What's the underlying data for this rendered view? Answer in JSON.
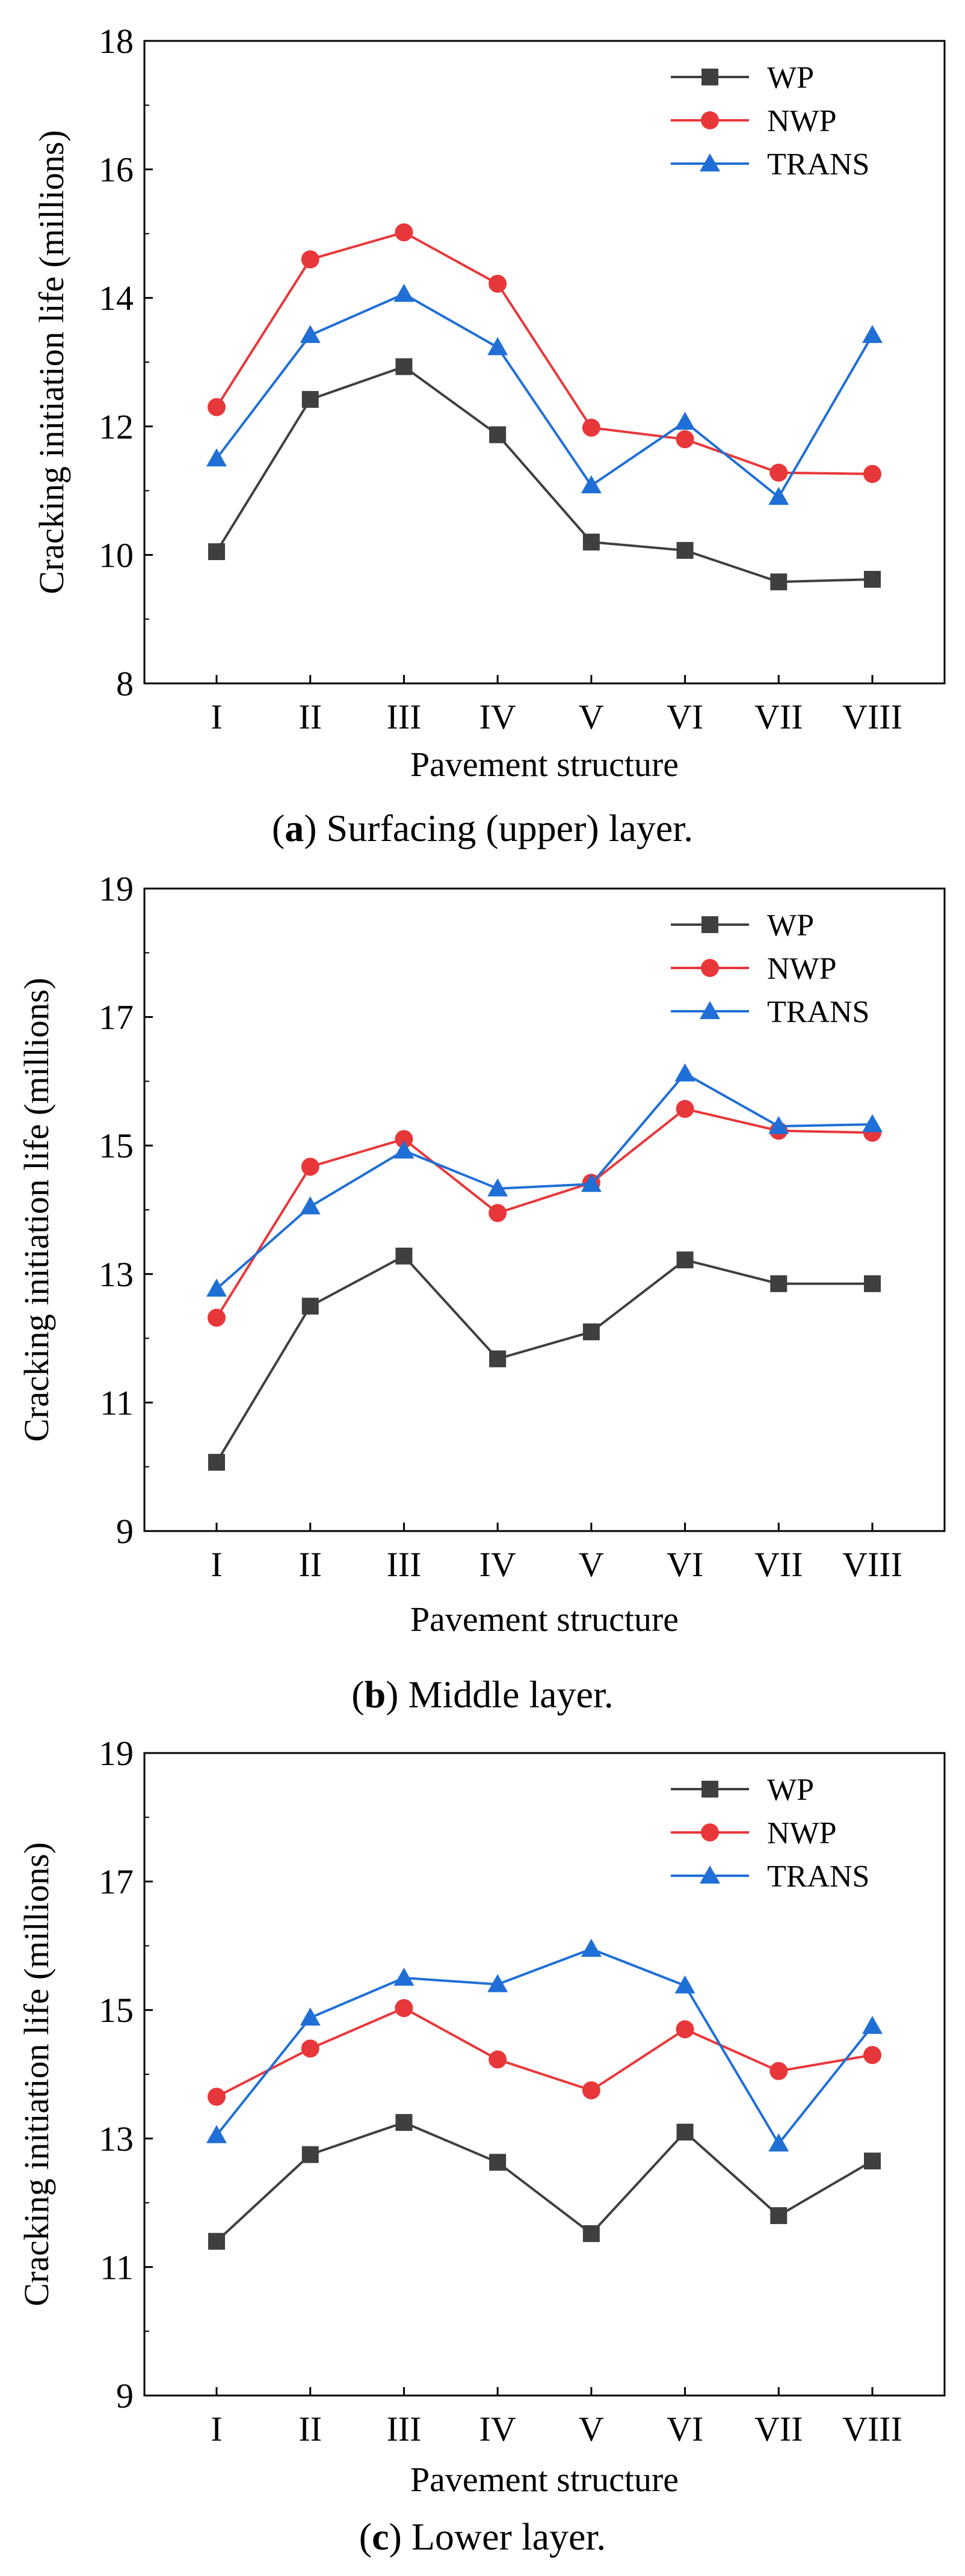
{
  "chart_data": [
    {
      "type": "line",
      "panel_letter": "a",
      "caption": ") Surfacing (upper) layer.",
      "xlabel": "Pavement structure",
      "ylabel": "Cracking initiation life (millions)",
      "categories": [
        "I",
        "II",
        "III",
        "IV",
        "V",
        "VI",
        "VII",
        "VIII"
      ],
      "ylim": [
        8,
        18
      ],
      "yticks": [
        8,
        10,
        12,
        14,
        16,
        18
      ],
      "legend_position": "top-right",
      "grid": false,
      "series": [
        {
          "name": "WP",
          "color": "#3f3f3f",
          "marker": "square",
          "values": [
            10.05,
            12.42,
            12.93,
            11.87,
            10.2,
            10.07,
            9.58,
            9.62
          ]
        },
        {
          "name": "NWP",
          "color": "#e8373a",
          "marker": "circle",
          "values": [
            12.3,
            14.6,
            15.02,
            14.22,
            11.98,
            11.8,
            11.28,
            11.26
          ]
        },
        {
          "name": "TRANS",
          "color": "#1f6fd6",
          "marker": "triangle",
          "values": [
            11.5,
            13.42,
            14.06,
            13.23,
            11.08,
            12.07,
            10.9,
            13.42
          ]
        }
      ]
    },
    {
      "type": "line",
      "panel_letter": "b",
      "caption": ") Middle layer.",
      "xlabel": "Pavement structure",
      "ylabel": "Cracking initiation life (millions)",
      "categories": [
        "I",
        "II",
        "III",
        "IV",
        "V",
        "VI",
        "VII",
        "VIII"
      ],
      "ylim": [
        9,
        19
      ],
      "yticks": [
        9,
        11,
        13,
        15,
        17,
        19
      ],
      "legend_position": "top-right",
      "grid": false,
      "series": [
        {
          "name": "WP",
          "color": "#3f3f3f",
          "marker": "square",
          "values": [
            10.07,
            12.5,
            13.28,
            11.68,
            12.1,
            13.22,
            12.85,
            12.85
          ]
        },
        {
          "name": "NWP",
          "color": "#e8373a",
          "marker": "circle",
          "values": [
            12.32,
            14.67,
            15.1,
            13.95,
            14.42,
            15.57,
            15.23,
            15.2
          ]
        },
        {
          "name": "TRANS",
          "color": "#1f6fd6",
          "marker": "triangle",
          "values": [
            12.77,
            14.05,
            14.92,
            14.33,
            14.4,
            16.12,
            15.3,
            15.33
          ]
        }
      ]
    },
    {
      "type": "line",
      "panel_letter": "c",
      "caption": ") Lower layer.",
      "xlabel": "Pavement structure",
      "ylabel": "Cracking initiation life (millions)",
      "categories": [
        "I",
        "II",
        "III",
        "IV",
        "V",
        "VI",
        "VII",
        "VIII"
      ],
      "ylim": [
        9,
        19
      ],
      "yticks": [
        9,
        11,
        13,
        15,
        17,
        19
      ],
      "legend_position": "top-right",
      "grid": false,
      "series": [
        {
          "name": "WP",
          "color": "#3f3f3f",
          "marker": "square",
          "values": [
            11.4,
            12.75,
            13.25,
            12.63,
            11.52,
            13.1,
            11.8,
            12.65
          ]
        },
        {
          "name": "NWP",
          "color": "#e8373a",
          "marker": "circle",
          "values": [
            13.65,
            14.4,
            15.03,
            14.23,
            13.75,
            14.7,
            14.05,
            14.3
          ]
        },
        {
          "name": "TRANS",
          "color": "#1f6fd6",
          "marker": "triangle",
          "values": [
            13.05,
            14.88,
            15.5,
            15.4,
            15.95,
            15.38,
            12.92,
            14.75
          ]
        }
      ]
    }
  ]
}
